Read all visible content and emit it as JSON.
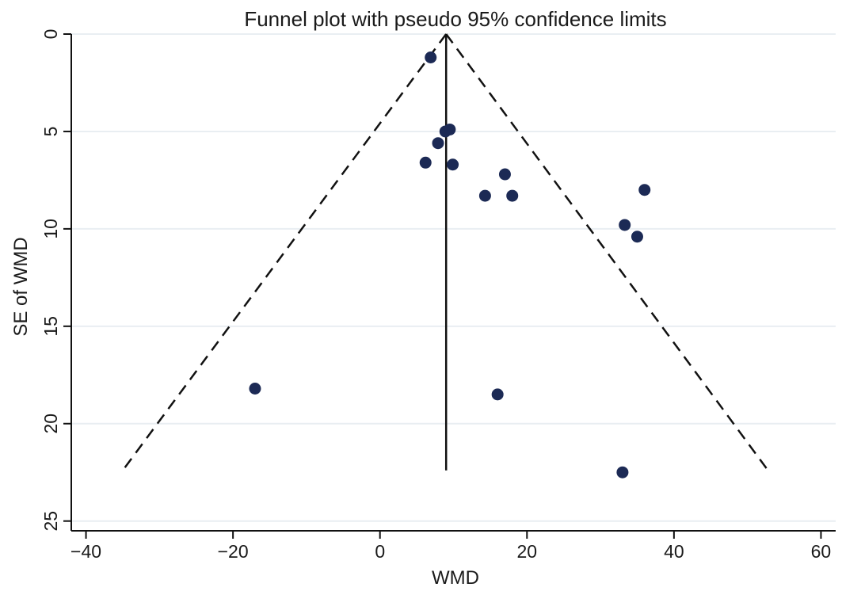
{
  "chart_data": {
    "type": "scatter",
    "title": "Funnel plot with pseudo 95% confidence limits",
    "xlabel": "WMD",
    "ylabel": "SE of WMD",
    "xlim": [
      -42,
      62
    ],
    "ylim": [
      0,
      25.5
    ],
    "y_reversed": true,
    "xticks": [
      -40,
      -20,
      0,
      20,
      40,
      60
    ],
    "yticks": [
      0,
      5,
      10,
      15,
      20,
      25
    ],
    "grid": "horizontal",
    "pooled_estimate": 9.0,
    "ci_limits": {
      "apex": [
        9.0,
        0
      ],
      "left_end": [
        -35.0,
        22.4
      ],
      "right_end": [
        52.8,
        22.4
      ]
    },
    "points": [
      {
        "x": 6.9,
        "y": 1.2
      },
      {
        "x": 9.5,
        "y": 4.9
      },
      {
        "x": 8.9,
        "y": 5.0
      },
      {
        "x": 7.9,
        "y": 5.6
      },
      {
        "x": 6.2,
        "y": 6.6
      },
      {
        "x": 9.9,
        "y": 6.7
      },
      {
        "x": 17.0,
        "y": 7.2
      },
      {
        "x": 14.3,
        "y": 8.3
      },
      {
        "x": 18.0,
        "y": 8.3
      },
      {
        "x": 36.0,
        "y": 8.0
      },
      {
        "x": 33.3,
        "y": 9.8
      },
      {
        "x": 35.0,
        "y": 10.4
      },
      {
        "x": -17.0,
        "y": 18.2
      },
      {
        "x": 16.0,
        "y": 18.5
      },
      {
        "x": 33.0,
        "y": 22.5
      }
    ],
    "colors": {
      "points": "#1c2a55",
      "lines": "#111111",
      "grid": "#e9eef2"
    }
  }
}
